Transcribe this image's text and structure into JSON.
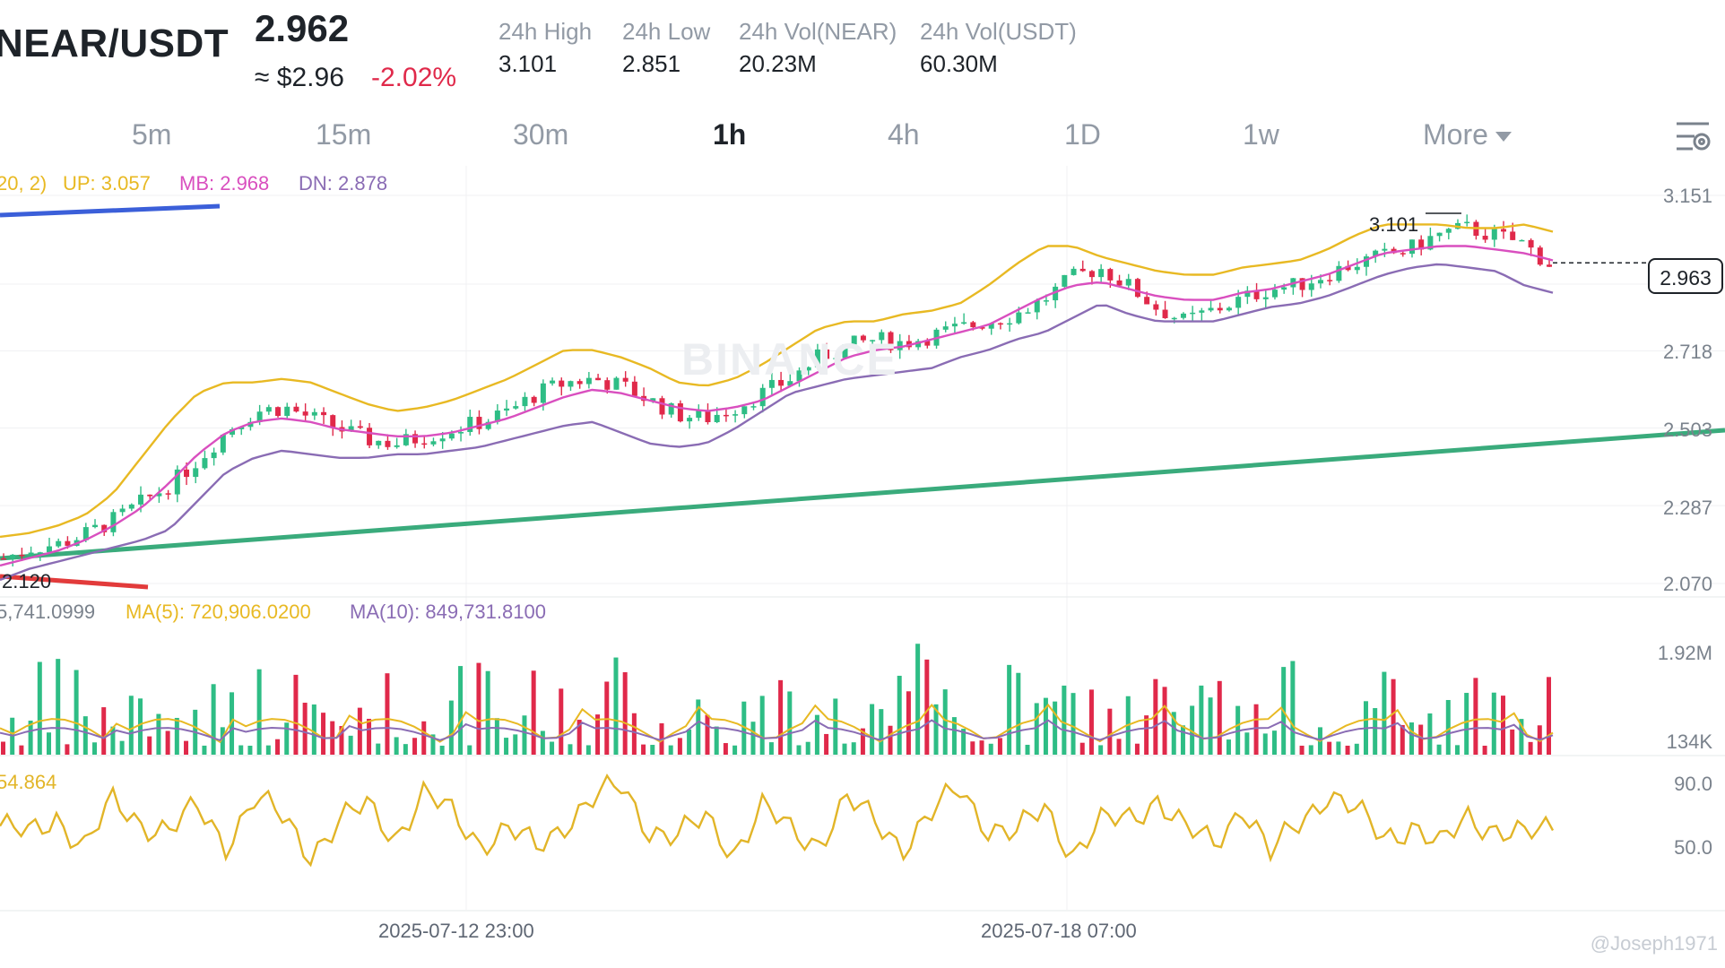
{
  "header": {
    "pair": "NEAR/USDT",
    "last_price": "2.962",
    "approx_usd": "≈ $2.96",
    "change_pct": "-2.02%",
    "stats": [
      {
        "label": "24h High",
        "value": "3.101"
      },
      {
        "label": "24h Low",
        "value": "2.851"
      },
      {
        "label": "24h Vol(NEAR)",
        "value": "20.23M"
      },
      {
        "label": "24h Vol(USDT)",
        "value": "60.30M"
      }
    ]
  },
  "timeframes": [
    "5m",
    "15m",
    "30m",
    "1h",
    "4h",
    "1D",
    "1w"
  ],
  "timeframe_active": "1h",
  "more_label": "More",
  "watermark": "BINANCE",
  "credit": "@Joseph1971",
  "colors": {
    "up": "#2ebd85",
    "down": "#e0294a",
    "boll_up": "#e8b923",
    "boll_mb": "#d94fbf",
    "boll_dn": "#8a6cb4",
    "trend_green": "#3aab7c",
    "trend_red": "#e23b3b",
    "trend_blue": "#3b5fd9",
    "rsi": "#e2b528"
  },
  "indicators": {
    "boll": {
      "prefix": "20, 2)",
      "up": "UP: 3.057",
      "mb": "MB: 2.968",
      "dn": "DN: 2.878"
    },
    "vol": {
      "vol": "5,741.0999",
      "ma5": "MA(5): 720,906.0200",
      "ma10": "MA(10): 849,731.8100"
    },
    "rsi": {
      "value": "54.864"
    }
  },
  "chart_data": [
    {
      "type": "candlestick",
      "title": "",
      "interval": "1h",
      "ylim": [
        2.07,
        3.151
      ],
      "y_ticks": [
        "3.151",
        "2.718",
        "2.503",
        "2.287",
        "2.070"
      ],
      "x_ticks": [
        "2025-07-12 23:00",
        "2025-07-18 07:00"
      ],
      "current_price": "2.963",
      "high_marker": "3.101",
      "low_marker": "2.120",
      "series": [
        {
          "name": "Close (approx.)",
          "values": [
            2.14,
            2.17,
            2.18,
            2.21,
            2.25,
            2.3,
            2.35,
            2.42,
            2.5,
            2.55,
            2.56,
            2.53,
            2.5,
            2.47,
            2.46,
            2.48,
            2.5,
            2.52,
            2.55,
            2.6,
            2.63,
            2.64,
            2.62,
            2.58,
            2.54,
            2.53,
            2.56,
            2.6,
            2.64,
            2.7,
            2.73,
            2.75,
            2.74,
            2.76,
            2.78,
            2.8,
            2.82,
            2.86,
            2.92,
            2.95,
            2.9,
            2.84,
            2.8,
            2.83,
            2.86,
            2.89,
            2.9,
            2.93,
            2.96,
            2.98,
            3.0,
            3.04,
            3.06,
            3.04,
            3.02,
            2.96
          ]
        },
        {
          "name": "BOLL UP (approx.)",
          "values": [
            2.2,
            2.21,
            2.23,
            2.26,
            2.32,
            2.42,
            2.52,
            2.6,
            2.63,
            2.63,
            2.64,
            2.63,
            2.6,
            2.57,
            2.55,
            2.56,
            2.58,
            2.61,
            2.64,
            2.68,
            2.72,
            2.72,
            2.7,
            2.67,
            2.63,
            2.62,
            2.64,
            2.68,
            2.73,
            2.78,
            2.8,
            2.8,
            2.82,
            2.83,
            2.85,
            2.9,
            2.96,
            3.01,
            3.01,
            2.98,
            2.96,
            2.94,
            2.93,
            2.93,
            2.95,
            2.96,
            2.97,
            3.0,
            3.04,
            3.07,
            3.07,
            3.07,
            3.06,
            3.06,
            3.07,
            3.05
          ]
        },
        {
          "name": "BOLL MB (approx.)",
          "values": [
            2.12,
            2.14,
            2.16,
            2.19,
            2.23,
            2.28,
            2.35,
            2.43,
            2.49,
            2.52,
            2.53,
            2.52,
            2.5,
            2.49,
            2.48,
            2.48,
            2.49,
            2.51,
            2.53,
            2.56,
            2.59,
            2.61,
            2.6,
            2.58,
            2.56,
            2.55,
            2.56,
            2.58,
            2.62,
            2.66,
            2.7,
            2.72,
            2.73,
            2.75,
            2.77,
            2.79,
            2.83,
            2.87,
            2.9,
            2.91,
            2.89,
            2.87,
            2.86,
            2.86,
            2.88,
            2.89,
            2.91,
            2.93,
            2.96,
            2.99,
            3.0,
            3.01,
            3.01,
            3.0,
            2.99,
            2.97
          ]
        },
        {
          "name": "BOLL DN (approx.)",
          "values": [
            2.08,
            2.11,
            2.13,
            2.15,
            2.17,
            2.19,
            2.22,
            2.3,
            2.38,
            2.42,
            2.44,
            2.43,
            2.42,
            2.42,
            2.43,
            2.43,
            2.44,
            2.45,
            2.47,
            2.49,
            2.51,
            2.52,
            2.49,
            2.46,
            2.45,
            2.46,
            2.5,
            2.55,
            2.6,
            2.62,
            2.64,
            2.65,
            2.66,
            2.67,
            2.7,
            2.72,
            2.75,
            2.77,
            2.81,
            2.85,
            2.82,
            2.8,
            2.8,
            2.8,
            2.82,
            2.84,
            2.85,
            2.87,
            2.9,
            2.93,
            2.95,
            2.96,
            2.95,
            2.94,
            2.9,
            2.88
          ]
        }
      ]
    },
    {
      "type": "bar",
      "title": "",
      "ylim": [
        134000,
        1920000
      ],
      "y_ticks": [
        "1.92M",
        "134K"
      ]
    },
    {
      "type": "line",
      "title": "",
      "ylim": [
        0,
        100
      ],
      "y_ticks": [
        "90.0",
        "50.0"
      ],
      "series": [
        {
          "name": "RSI (approx.)",
          "values": [
            55,
            48,
            62,
            41,
            70,
            58,
            52,
            66,
            44,
            73,
            60,
            38,
            57,
            68,
            49,
            75,
            63,
            45,
            52,
            40,
            58,
            72,
            81,
            54,
            47,
            60,
            39,
            66,
            52,
            45,
            71,
            58,
            43,
            62,
            80,
            55,
            49,
            67,
            38,
            56,
            60,
            74,
            51,
            44,
            69,
            35,
            58,
            77,
            64,
            48,
            56,
            40,
            62,
            53,
            47,
            54.9
          ]
        }
      ]
    }
  ]
}
